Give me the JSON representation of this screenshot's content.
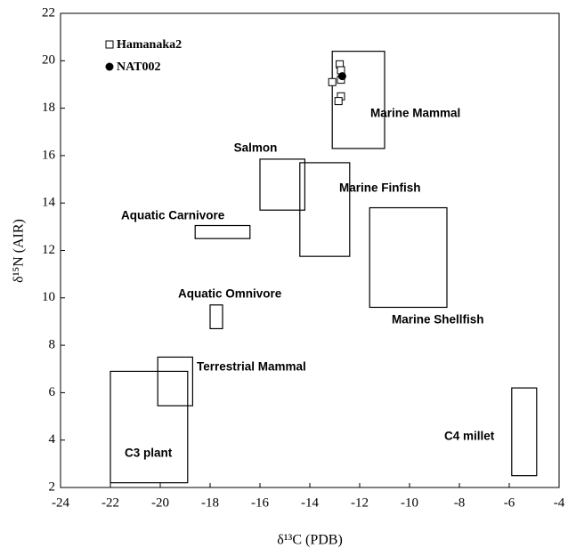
{
  "chart_data": {
    "type": "scatter",
    "xlabel": "δ¹³C (PDB)",
    "ylabel": "δ¹⁵N (AIR)",
    "xlim": [
      -24,
      -4
    ],
    "xticks": [
      -24,
      -22,
      -20,
      -18,
      -16,
      -14,
      -12,
      -10,
      -8,
      -6,
      -4
    ],
    "ylim": [
      2,
      22
    ],
    "yticks": [
      2,
      4,
      6,
      8,
      10,
      12,
      14,
      16,
      18,
      20,
      22
    ],
    "series": [
      {
        "name": "Hamanaka2",
        "color": "#000000",
        "marker": "square-open",
        "x": [
          -12.8,
          -12.75,
          -12.75,
          -13.1,
          -12.75,
          -12.85
        ],
        "y": [
          19.85,
          19.6,
          19.2,
          19.1,
          18.5,
          18.3
        ]
      },
      {
        "name": "NAT002",
        "color": "#000000",
        "marker": "circle-filled",
        "x": [
          -12.7
        ],
        "y": [
          19.35
        ]
      }
    ],
    "regions": [
      {
        "label": "Marine Mammal",
        "x": [
          -13.1,
          -11.0
        ],
        "y": [
          16.3,
          20.4
        ]
      },
      {
        "label": "Salmon",
        "x": [
          -16.0,
          -14.2
        ],
        "y": [
          13.7,
          15.85
        ]
      },
      {
        "label": "Marine Finfish",
        "x": [
          -14.4,
          -12.4
        ],
        "y": [
          11.75,
          15.7
        ]
      },
      {
        "label": "Marine Shellfish",
        "x": [
          -11.6,
          -8.5
        ],
        "y": [
          9.6,
          13.8
        ]
      },
      {
        "label": "Aquatic Carnivore",
        "x": [
          -18.6,
          -16.4
        ],
        "y": [
          12.5,
          13.05
        ]
      },
      {
        "label": "Aquatic Omnivore",
        "x": [
          -18.0,
          -17.5
        ],
        "y": [
          8.7,
          9.7
        ]
      },
      {
        "label": "Terrestrial Mammal",
        "x": [
          -20.1,
          -18.7
        ],
        "y": [
          5.45,
          7.5
        ]
      },
      {
        "label": "C3 plant",
        "x": [
          -22.0,
          -18.9
        ],
        "y": [
          2.2,
          6.9
        ]
      },
      {
        "label": "C4 millet",
        "x": [
          -5.9,
          -4.9
        ],
        "y": [
          2.5,
          6.2
        ]
      }
    ]
  }
}
